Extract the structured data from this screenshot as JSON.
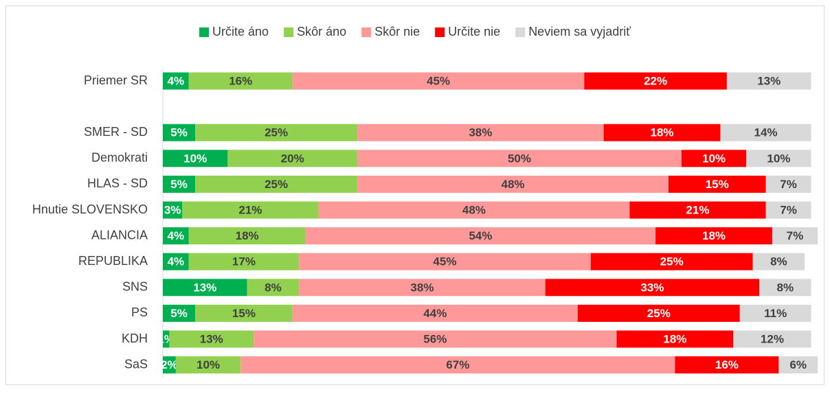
{
  "chart_data": {
    "type": "stacked_bar_horizontal",
    "categories": [
      "Priemer SR",
      null,
      "SMER - SD",
      "Demokrati",
      "HLAS - SD",
      "Hnutie SLOVENSKO",
      "ALIANCIA",
      "REPUBLIKA",
      "SNS",
      "PS",
      "KDH",
      "SaS"
    ],
    "series": [
      {
        "name": "Určite áno",
        "color": "#00b050",
        "label_color": "#ffffff",
        "values": [
          4,
          null,
          5,
          10,
          5,
          3,
          4,
          4,
          13,
          5,
          1,
          2
        ],
        "value_labels": [
          "4%",
          null,
          "5%",
          "10%",
          "5%",
          "3%",
          "4%",
          "4%",
          "13%",
          "5%",
          "1%",
          "2%"
        ]
      },
      {
        "name": "Skôr áno",
        "color": "#92d050",
        "label_color": "#404040",
        "values": [
          16,
          null,
          25,
          20,
          25,
          21,
          18,
          17,
          8,
          15,
          13,
          10
        ],
        "value_labels": [
          "16%",
          null,
          "25%",
          "20%",
          "25%",
          "21%",
          "18%",
          "17%",
          "8%",
          "15%",
          "13%",
          "10%"
        ]
      },
      {
        "name": "Skôr nie",
        "color": "#ff9999",
        "label_color": "#404040",
        "values": [
          45,
          null,
          38,
          50,
          48,
          48,
          54,
          45,
          38,
          44,
          56,
          67
        ],
        "value_labels": [
          "45%",
          null,
          "38%",
          "50%",
          "48%",
          "48%",
          "54%",
          "45%",
          "38%",
          "44%",
          "56%",
          "67%"
        ]
      },
      {
        "name": "Určite nie",
        "color": "#ff0000",
        "label_color": "#ffffff",
        "values": [
          22,
          null,
          18,
          10,
          15,
          21,
          18,
          25,
          33,
          25,
          18,
          16
        ],
        "value_labels": [
          "22%",
          null,
          "18%",
          "10%",
          "15%",
          "21%",
          "18%",
          "25%",
          "33%",
          "25%",
          "18%",
          "16%"
        ]
      },
      {
        "name": "Neviem sa vyjadriť",
        "color": "#d9d9d9",
        "label_color": "#404040",
        "values": [
          13,
          null,
          14,
          10,
          7,
          7,
          7,
          8,
          8,
          11,
          12,
          6
        ],
        "value_labels": [
          "13%",
          null,
          "14%",
          "10%",
          "7%",
          "7%",
          "7%",
          "8%",
          "8%",
          "11%",
          "12%",
          "6%"
        ]
      }
    ],
    "legend": "top"
  }
}
